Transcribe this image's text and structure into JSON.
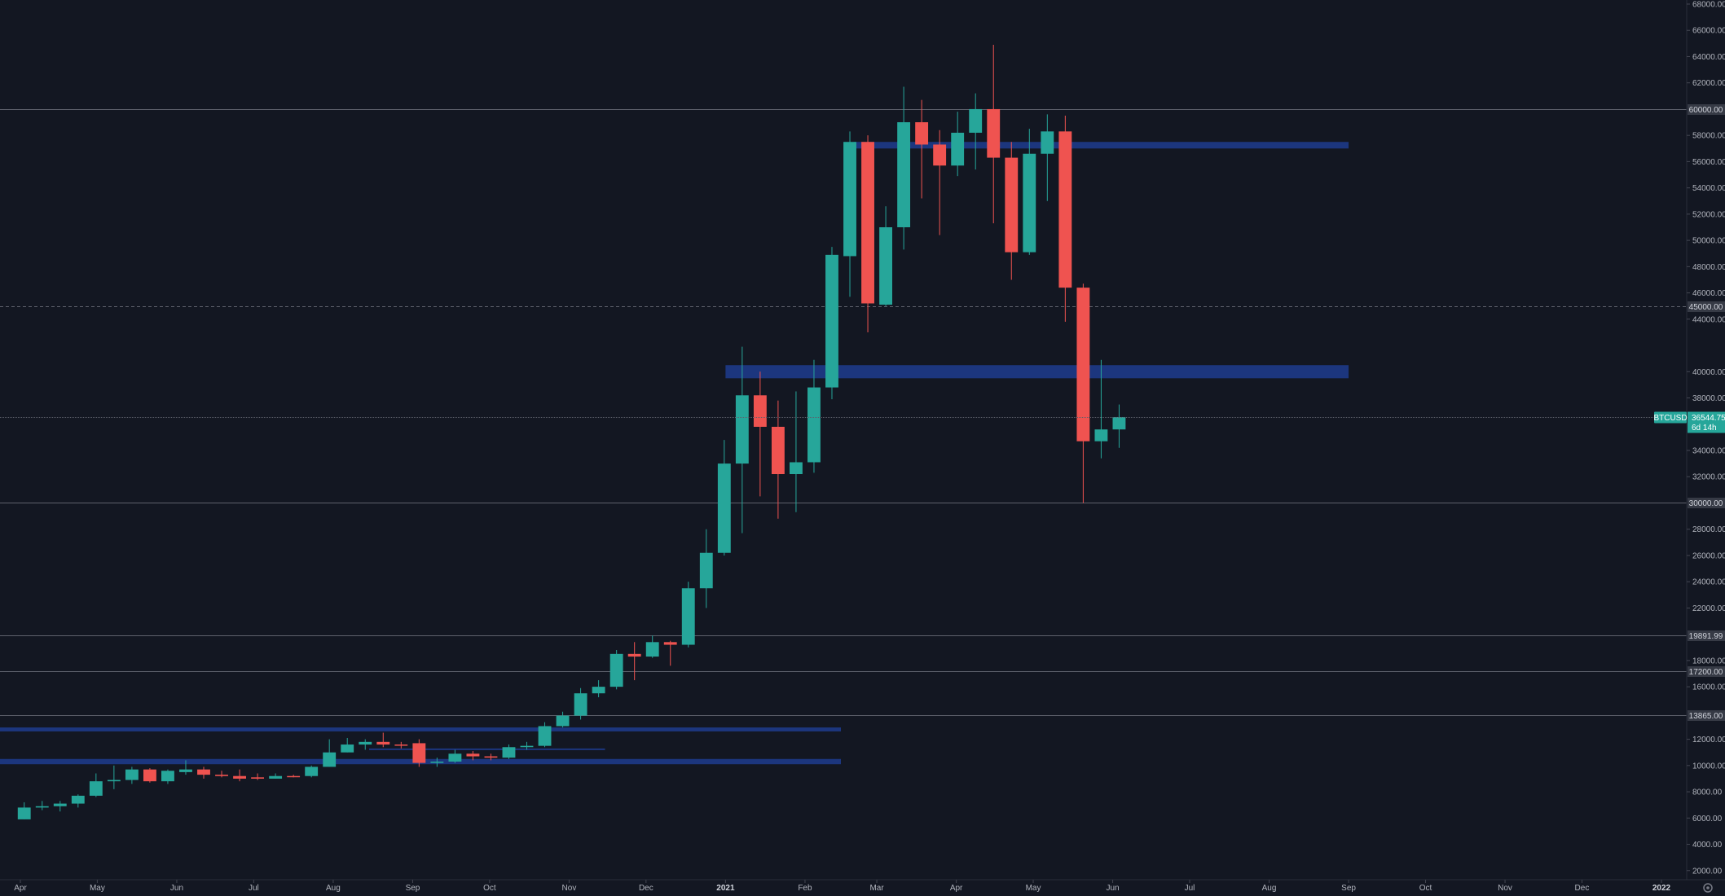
{
  "chart_data": {
    "type": "candlestick",
    "symbol": "BTCUSD",
    "interval": "weekly",
    "colors": {
      "background": "#131722",
      "up": "#26a69a",
      "down": "#ef5350",
      "zone": "#2962ff",
      "axis_text": "#b2b5be"
    },
    "grid": false,
    "ylim": [
      0,
      68000
    ],
    "y_ticks": [
      2000,
      4000,
      6000,
      8000,
      10000,
      12000,
      16000,
      18000,
      22000,
      24000,
      26000,
      28000,
      32000,
      34000,
      38000,
      40000,
      44000,
      46000,
      48000,
      50000,
      52000,
      54000,
      56000,
      58000,
      62000,
      64000,
      66000,
      68000
    ],
    "x_ticks": [
      {
        "label": "Apr",
        "date": "2020-04-01"
      },
      {
        "label": "May",
        "date": "2020-05-01"
      },
      {
        "label": "Jun",
        "date": "2020-06-01"
      },
      {
        "label": "Jul",
        "date": "2020-07-01"
      },
      {
        "label": "Aug",
        "date": "2020-08-01"
      },
      {
        "label": "Sep",
        "date": "2020-09-01"
      },
      {
        "label": "Oct",
        "date": "2020-10-01"
      },
      {
        "label": "Nov",
        "date": "2020-11-01"
      },
      {
        "label": "Dec",
        "date": "2020-12-01"
      },
      {
        "label": "2021",
        "date": "2021-01-01",
        "bold": true
      },
      {
        "label": "Feb",
        "date": "2021-02-01"
      },
      {
        "label": "Mar",
        "date": "2021-03-01"
      },
      {
        "label": "Apr",
        "date": "2021-04-01"
      },
      {
        "label": "May",
        "date": "2021-05-01"
      },
      {
        "label": "Jun",
        "date": "2021-06-01"
      },
      {
        "label": "Jul",
        "date": "2021-07-01"
      },
      {
        "label": "Aug",
        "date": "2021-08-01"
      },
      {
        "label": "Sep",
        "date": "2021-09-01"
      },
      {
        "label": "Oct",
        "date": "2021-10-01"
      },
      {
        "label": "Nov",
        "date": "2021-11-01"
      },
      {
        "label": "Dec",
        "date": "2021-12-01"
      },
      {
        "label": "2022",
        "date": "2022-01-01",
        "bold": true
      }
    ],
    "horizontal_lines": [
      {
        "label": "60000.00",
        "price": 60000,
        "style": "solid"
      },
      {
        "label": "45000.00",
        "price": 45000,
        "style": "dashed"
      },
      {
        "label": "30000.00",
        "price": 30000,
        "style": "solid"
      },
      {
        "label": "19891.99",
        "price": 19891.99,
        "style": "solid"
      },
      {
        "label": "17200.00",
        "price": 17200,
        "style": "solid"
      },
      {
        "label": "13865.00",
        "price": 13865,
        "style": "solid"
      }
    ],
    "zones": [
      {
        "start": "2021-02-20",
        "end": "2021-09-01",
        "low": 57000,
        "high": 57500
      },
      {
        "start": "2021-01-01",
        "end": "2021-09-01",
        "low": 39500,
        "high": 40500
      },
      {
        "start": "2020-03-10",
        "end": "2021-02-15",
        "low": 12600,
        "high": 12900
      },
      {
        "start": "2020-03-10",
        "end": "2021-02-15",
        "low": 10100,
        "high": 10500
      },
      {
        "start": "2020-08-15",
        "end": "2020-11-15",
        "low": 11200,
        "high": 11300
      }
    ],
    "last_price": {
      "label": "36544.75",
      "price": 36544.75,
      "countdown": "6d 14h"
    },
    "candles": [
      {
        "date": "2020-03-30",
        "o": 5900,
        "h": 7200,
        "l": 5900,
        "c": 6800
      },
      {
        "date": "2020-04-06",
        "o": 6800,
        "h": 7300,
        "l": 6600,
        "c": 6900
      },
      {
        "date": "2020-04-13",
        "o": 6900,
        "h": 7300,
        "l": 6500,
        "c": 7100
      },
      {
        "date": "2020-04-20",
        "o": 7100,
        "h": 7800,
        "l": 6800,
        "c": 7700
      },
      {
        "date": "2020-04-27",
        "o": 7700,
        "h": 9400,
        "l": 7600,
        "c": 8800
      },
      {
        "date": "2020-05-04",
        "o": 8800,
        "h": 10000,
        "l": 8200,
        "c": 8900
      },
      {
        "date": "2020-05-11",
        "o": 8900,
        "h": 9900,
        "l": 8600,
        "c": 9700
      },
      {
        "date": "2020-05-18",
        "o": 9700,
        "h": 9800,
        "l": 8700,
        "c": 8800
      },
      {
        "date": "2020-05-25",
        "o": 8800,
        "h": 9700,
        "l": 8600,
        "c": 9600
      },
      {
        "date": "2020-06-01",
        "o": 9500,
        "h": 10400,
        "l": 9300,
        "c": 9700
      },
      {
        "date": "2020-06-08",
        "o": 9700,
        "h": 9900,
        "l": 9000,
        "c": 9300
      },
      {
        "date": "2020-06-15",
        "o": 9300,
        "h": 9600,
        "l": 9100,
        "c": 9200
      },
      {
        "date": "2020-06-22",
        "o": 9200,
        "h": 9700,
        "l": 8800,
        "c": 9000
      },
      {
        "date": "2020-06-29",
        "o": 9100,
        "h": 9400,
        "l": 8900,
        "c": 9000
      },
      {
        "date": "2020-07-06",
        "o": 9000,
        "h": 9400,
        "l": 9000,
        "c": 9200
      },
      {
        "date": "2020-07-13",
        "o": 9200,
        "h": 9300,
        "l": 9100,
        "c": 9150
      },
      {
        "date": "2020-07-20",
        "o": 9200,
        "h": 10000,
        "l": 9100,
        "c": 9900
      },
      {
        "date": "2020-07-27",
        "o": 9900,
        "h": 12000,
        "l": 9900,
        "c": 11000
      },
      {
        "date": "2020-08-03",
        "o": 11000,
        "h": 12100,
        "l": 11000,
        "c": 11600
      },
      {
        "date": "2020-08-10",
        "o": 11600,
        "h": 12000,
        "l": 11200,
        "c": 11800
      },
      {
        "date": "2020-08-17",
        "o": 11800,
        "h": 12500,
        "l": 11400,
        "c": 11600
      },
      {
        "date": "2020-08-24",
        "o": 11600,
        "h": 11800,
        "l": 11300,
        "c": 11550
      },
      {
        "date": "2020-08-31",
        "o": 11700,
        "h": 12000,
        "l": 9900,
        "c": 10200
      },
      {
        "date": "2020-09-07",
        "o": 10200,
        "h": 10600,
        "l": 9900,
        "c": 10300
      },
      {
        "date": "2020-09-14",
        "o": 10300,
        "h": 11200,
        "l": 10200,
        "c": 10900
      },
      {
        "date": "2020-09-21",
        "o": 10900,
        "h": 11100,
        "l": 10400,
        "c": 10700
      },
      {
        "date": "2020-09-28",
        "o": 10700,
        "h": 10900,
        "l": 10400,
        "c": 10600
      },
      {
        "date": "2020-10-05",
        "o": 10600,
        "h": 11600,
        "l": 10500,
        "c": 11400
      },
      {
        "date": "2020-10-12",
        "o": 11400,
        "h": 11800,
        "l": 11200,
        "c": 11500
      },
      {
        "date": "2020-10-19",
        "o": 11500,
        "h": 13300,
        "l": 11400,
        "c": 13000
      },
      {
        "date": "2020-10-26",
        "o": 13000,
        "h": 14100,
        "l": 12900,
        "c": 13800
      },
      {
        "date": "2020-11-02",
        "o": 13800,
        "h": 15900,
        "l": 13500,
        "c": 15500
      },
      {
        "date": "2020-11-09",
        "o": 15500,
        "h": 16500,
        "l": 15200,
        "c": 16000
      },
      {
        "date": "2020-11-16",
        "o": 16000,
        "h": 18800,
        "l": 15800,
        "c": 18500
      },
      {
        "date": "2020-11-23",
        "o": 18500,
        "h": 19400,
        "l": 16500,
        "c": 18300
      },
      {
        "date": "2020-11-30",
        "o": 18300,
        "h": 19900,
        "l": 18200,
        "c": 19400
      },
      {
        "date": "2020-12-07",
        "o": 19400,
        "h": 19500,
        "l": 17600,
        "c": 19200
      },
      {
        "date": "2020-12-14",
        "o": 19200,
        "h": 24000,
        "l": 19000,
        "c": 23500
      },
      {
        "date": "2020-12-21",
        "o": 23500,
        "h": 28000,
        "l": 22000,
        "c": 26200
      },
      {
        "date": "2020-12-28",
        "o": 26200,
        "h": 34800,
        "l": 26000,
        "c": 33000
      },
      {
        "date": "2021-01-04",
        "o": 33000,
        "h": 41900,
        "l": 27700,
        "c": 38200
      },
      {
        "date": "2021-01-11",
        "o": 38200,
        "h": 40000,
        "l": 30500,
        "c": 35800
      },
      {
        "date": "2021-01-18",
        "o": 35800,
        "h": 37800,
        "l": 28800,
        "c": 32200
      },
      {
        "date": "2021-01-25",
        "o": 32200,
        "h": 38500,
        "l": 29300,
        "c": 33100
      },
      {
        "date": "2021-02-01",
        "o": 33100,
        "h": 40900,
        "l": 32300,
        "c": 38800
      },
      {
        "date": "2021-02-08",
        "o": 38800,
        "h": 49500,
        "l": 37900,
        "c": 48900
      },
      {
        "date": "2021-02-15",
        "o": 48800,
        "h": 58300,
        "l": 45700,
        "c": 57500
      },
      {
        "date": "2021-02-22",
        "o": 57500,
        "h": 58000,
        "l": 43000,
        "c": 45200
      },
      {
        "date": "2021-03-01",
        "o": 45100,
        "h": 52600,
        "l": 45000,
        "c": 51000
      },
      {
        "date": "2021-03-08",
        "o": 51000,
        "h": 61700,
        "l": 49300,
        "c": 59000
      },
      {
        "date": "2021-03-15",
        "o": 59000,
        "h": 60700,
        "l": 53200,
        "c": 57300
      },
      {
        "date": "2021-03-22",
        "o": 57300,
        "h": 58400,
        "l": 50400,
        "c": 55700
      },
      {
        "date": "2021-03-29",
        "o": 55700,
        "h": 59800,
        "l": 54900,
        "c": 58200
      },
      {
        "date": "2021-04-05",
        "o": 58200,
        "h": 61200,
        "l": 55400,
        "c": 60000
      },
      {
        "date": "2021-04-12",
        "o": 60000,
        "h": 64900,
        "l": 51300,
        "c": 56300
      },
      {
        "date": "2021-04-19",
        "o": 56300,
        "h": 57500,
        "l": 47000,
        "c": 49100
      },
      {
        "date": "2021-04-26",
        "o": 49100,
        "h": 58500,
        "l": 48900,
        "c": 56600
      },
      {
        "date": "2021-05-03",
        "o": 56600,
        "h": 59600,
        "l": 53000,
        "c": 58300
      },
      {
        "date": "2021-05-10",
        "o": 58300,
        "h": 59500,
        "l": 43800,
        "c": 46400
      },
      {
        "date": "2021-05-17",
        "o": 46400,
        "h": 46700,
        "l": 30000,
        "c": 34700
      },
      {
        "date": "2021-05-24",
        "o": 34700,
        "h": 40900,
        "l": 33400,
        "c": 35600
      },
      {
        "date": "2021-05-31",
        "o": 35600,
        "h": 37500,
        "l": 34200,
        "c": 36544.75
      }
    ]
  }
}
